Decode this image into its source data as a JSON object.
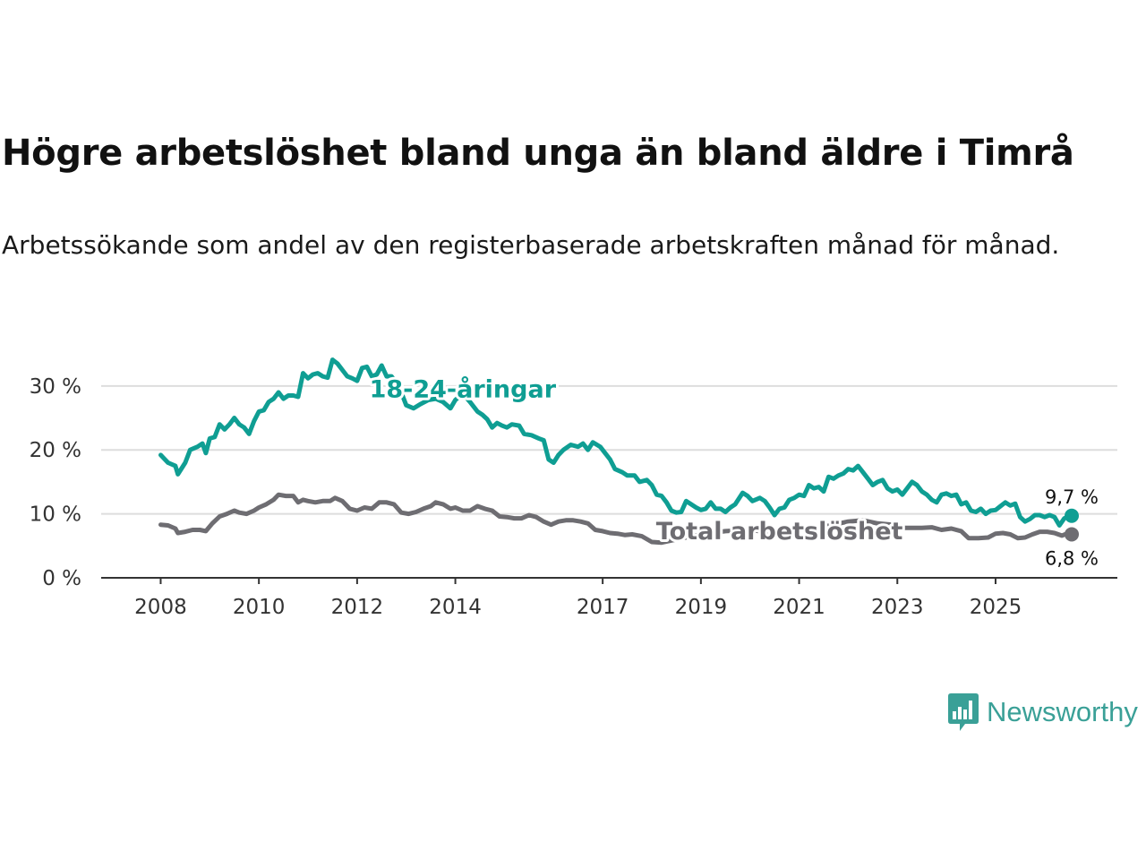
{
  "title": "Högre arbetslöshet bland unga än bland äldre i Timrå",
  "subtitle": "Arbetssökande som andel av den registerbaserade arbetskraften månad för månad.",
  "logo_text": "Newsworthy",
  "colors": {
    "youth": "#0f9e93",
    "total": "#6e6d72",
    "grid": "#dddddd",
    "axis": "#333333"
  },
  "chart_data": {
    "type": "line",
    "ylim": [
      0,
      36
    ],
    "xlim": [
      2007.7,
      2026.55
    ],
    "y_ticks": [
      {
        "value": 0,
        "label": "0 %"
      },
      {
        "value": 10,
        "label": "10 %"
      },
      {
        "value": 20,
        "label": "20 %"
      },
      {
        "value": 30,
        "label": "30 %"
      }
    ],
    "x_ticks": [
      {
        "value": 2008,
        "label": "2008"
      },
      {
        "value": 2010,
        "label": "2010"
      },
      {
        "value": 2012,
        "label": "2012"
      },
      {
        "value": 2014,
        "label": "2014"
      },
      {
        "value": 2017,
        "label": "2017"
      },
      {
        "value": 2019,
        "label": "2019"
      },
      {
        "value": 2021,
        "label": "2021"
      },
      {
        "value": 2023,
        "label": "2023"
      },
      {
        "value": 2025,
        "label": "2025"
      }
    ],
    "series": [
      {
        "name": "18-24-åringar",
        "key": "youth",
        "end_label": "9,7 %",
        "points": [
          [
            2008.0,
            19.2
          ],
          [
            2008.15,
            18.0
          ],
          [
            2008.3,
            17.5
          ],
          [
            2008.35,
            16.2
          ],
          [
            2008.5,
            18.0
          ],
          [
            2008.6,
            20.0
          ],
          [
            2008.75,
            20.5
          ],
          [
            2008.85,
            21.0
          ],
          [
            2008.92,
            19.5
          ],
          [
            2009.0,
            21.8
          ],
          [
            2009.1,
            22.0
          ],
          [
            2009.2,
            24.0
          ],
          [
            2009.3,
            23.2
          ],
          [
            2009.4,
            24.0
          ],
          [
            2009.5,
            25.0
          ],
          [
            2009.6,
            24.0
          ],
          [
            2009.7,
            23.5
          ],
          [
            2009.8,
            22.5
          ],
          [
            2009.9,
            24.5
          ],
          [
            2010.0,
            26.0
          ],
          [
            2010.1,
            26.2
          ],
          [
            2010.2,
            27.5
          ],
          [
            2010.3,
            28.0
          ],
          [
            2010.4,
            29.0
          ],
          [
            2010.5,
            28.0
          ],
          [
            2010.6,
            28.5
          ],
          [
            2010.7,
            28.5
          ],
          [
            2010.8,
            28.3
          ],
          [
            2010.9,
            32.0
          ],
          [
            2011.0,
            31.2
          ],
          [
            2011.1,
            31.8
          ],
          [
            2011.2,
            32.0
          ],
          [
            2011.3,
            31.5
          ],
          [
            2011.4,
            31.3
          ],
          [
            2011.5,
            34.1
          ],
          [
            2011.6,
            33.5
          ],
          [
            2011.7,
            32.5
          ],
          [
            2011.8,
            31.5
          ],
          [
            2011.9,
            31.2
          ],
          [
            2012.0,
            30.8
          ],
          [
            2012.1,
            32.8
          ],
          [
            2012.2,
            33.0
          ],
          [
            2012.3,
            31.5
          ],
          [
            2012.4,
            31.8
          ],
          [
            2012.5,
            33.2
          ],
          [
            2012.6,
            31.5
          ],
          [
            2012.7,
            31.5
          ],
          [
            2012.8,
            30.5
          ],
          [
            2012.9,
            29.0
          ],
          [
            2013.0,
            27.0
          ],
          [
            2013.15,
            26.5
          ],
          [
            2013.3,
            27.2
          ],
          [
            2013.45,
            27.8
          ],
          [
            2013.6,
            28.0
          ],
          [
            2013.75,
            27.5
          ],
          [
            2013.9,
            26.5
          ],
          [
            2014.0,
            27.8
          ],
          [
            2014.15,
            28.8
          ],
          [
            2014.3,
            27.5
          ],
          [
            2014.45,
            26.0
          ],
          [
            2014.55,
            25.5
          ],
          [
            2014.65,
            24.8
          ],
          [
            2014.75,
            23.5
          ],
          [
            2014.85,
            24.2
          ],
          [
            2014.95,
            23.8
          ],
          [
            2015.05,
            23.5
          ],
          [
            2015.15,
            24.0
          ],
          [
            2015.3,
            23.8
          ],
          [
            2015.4,
            22.5
          ],
          [
            2015.55,
            22.3
          ],
          [
            2015.7,
            21.8
          ],
          [
            2015.8,
            21.5
          ],
          [
            2015.9,
            18.5
          ],
          [
            2016.0,
            18.0
          ],
          [
            2016.1,
            19.2
          ],
          [
            2016.2,
            20.0
          ],
          [
            2016.35,
            20.8
          ],
          [
            2016.5,
            20.5
          ],
          [
            2016.6,
            21.0
          ],
          [
            2016.7,
            20.0
          ],
          [
            2016.8,
            21.2
          ],
          [
            2016.95,
            20.5
          ],
          [
            2017.05,
            19.5
          ],
          [
            2017.15,
            18.5
          ],
          [
            2017.25,
            17.0
          ],
          [
            2017.4,
            16.5
          ],
          [
            2017.5,
            16.0
          ],
          [
            2017.65,
            16.0
          ],
          [
            2017.75,
            15.0
          ],
          [
            2017.9,
            15.3
          ],
          [
            2018.0,
            14.5
          ],
          [
            2018.1,
            13.0
          ],
          [
            2018.2,
            12.8
          ],
          [
            2018.3,
            11.8
          ],
          [
            2018.4,
            10.5
          ],
          [
            2018.5,
            10.2
          ],
          [
            2018.6,
            10.3
          ],
          [
            2018.7,
            12.0
          ],
          [
            2018.8,
            11.5
          ],
          [
            2018.9,
            11.0
          ],
          [
            2019.0,
            10.6
          ],
          [
            2019.1,
            10.8
          ],
          [
            2019.2,
            11.8
          ],
          [
            2019.3,
            10.8
          ],
          [
            2019.4,
            10.8
          ],
          [
            2019.5,
            10.3
          ],
          [
            2019.6,
            11.0
          ],
          [
            2019.7,
            11.5
          ],
          [
            2019.85,
            13.3
          ],
          [
            2019.95,
            12.8
          ],
          [
            2020.05,
            12.0
          ],
          [
            2020.2,
            12.5
          ],
          [
            2020.3,
            12.0
          ],
          [
            2020.4,
            11.0
          ],
          [
            2020.5,
            9.8
          ],
          [
            2020.6,
            10.8
          ],
          [
            2020.7,
            11.0
          ],
          [
            2020.8,
            12.2
          ],
          [
            2020.9,
            12.5
          ],
          [
            2021.0,
            13.0
          ],
          [
            2021.1,
            12.8
          ],
          [
            2021.2,
            14.5
          ],
          [
            2021.3,
            14.0
          ],
          [
            2021.4,
            14.2
          ],
          [
            2021.5,
            13.5
          ],
          [
            2021.6,
            15.8
          ],
          [
            2021.7,
            15.5
          ],
          [
            2021.8,
            16.0
          ],
          [
            2021.9,
            16.3
          ],
          [
            2022.0,
            17.0
          ],
          [
            2022.1,
            16.8
          ],
          [
            2022.2,
            17.5
          ],
          [
            2022.3,
            16.5
          ],
          [
            2022.4,
            15.5
          ],
          [
            2022.5,
            14.5
          ],
          [
            2022.6,
            15.0
          ],
          [
            2022.7,
            15.3
          ],
          [
            2022.8,
            14.0
          ],
          [
            2022.9,
            13.5
          ],
          [
            2023.0,
            13.8
          ],
          [
            2023.1,
            13.0
          ],
          [
            2023.2,
            14.0
          ],
          [
            2023.3,
            15.0
          ],
          [
            2023.4,
            14.5
          ],
          [
            2023.5,
            13.5
          ],
          [
            2023.6,
            13.0
          ],
          [
            2023.7,
            12.2
          ],
          [
            2023.8,
            11.8
          ],
          [
            2023.9,
            13.0
          ],
          [
            2024.0,
            13.2
          ],
          [
            2024.1,
            12.8
          ],
          [
            2024.2,
            13.0
          ],
          [
            2024.3,
            11.5
          ],
          [
            2024.4,
            11.8
          ],
          [
            2024.5,
            10.5
          ],
          [
            2024.6,
            10.3
          ],
          [
            2024.7,
            10.8
          ],
          [
            2024.8,
            10.0
          ],
          [
            2024.9,
            10.5
          ],
          [
            2025.0,
            10.6
          ],
          [
            2025.1,
            11.2
          ],
          [
            2025.2,
            11.8
          ],
          [
            2025.3,
            11.3
          ],
          [
            2025.4,
            11.6
          ],
          [
            2025.5,
            9.5
          ],
          [
            2025.6,
            8.8
          ],
          [
            2025.7,
            9.2
          ],
          [
            2025.8,
            9.8
          ],
          [
            2025.9,
            9.8
          ],
          [
            2026.0,
            9.5
          ],
          [
            2026.1,
            9.8
          ],
          [
            2026.2,
            9.5
          ],
          [
            2026.3,
            8.2
          ],
          [
            2026.4,
            9.3
          ],
          [
            2026.55,
            9.7
          ]
        ]
      },
      {
        "name": "Total arbetslöshet",
        "key": "total",
        "end_label": "6,8 %",
        "points": [
          [
            2008.0,
            8.3
          ],
          [
            2008.15,
            8.2
          ],
          [
            2008.3,
            7.7
          ],
          [
            2008.35,
            7.0
          ],
          [
            2008.5,
            7.2
          ],
          [
            2008.65,
            7.5
          ],
          [
            2008.8,
            7.5
          ],
          [
            2008.92,
            7.3
          ],
          [
            2009.05,
            8.5
          ],
          [
            2009.2,
            9.6
          ],
          [
            2009.35,
            10.0
          ],
          [
            2009.5,
            10.5
          ],
          [
            2009.6,
            10.2
          ],
          [
            2009.75,
            10.0
          ],
          [
            2009.9,
            10.5
          ],
          [
            2010.0,
            11.0
          ],
          [
            2010.15,
            11.5
          ],
          [
            2010.3,
            12.2
          ],
          [
            2010.4,
            13.0
          ],
          [
            2010.55,
            12.8
          ],
          [
            2010.7,
            12.8
          ],
          [
            2010.8,
            11.8
          ],
          [
            2010.9,
            12.2
          ],
          [
            2011.0,
            12.0
          ],
          [
            2011.15,
            11.8
          ],
          [
            2011.3,
            12.0
          ],
          [
            2011.45,
            12.0
          ],
          [
            2011.55,
            12.5
          ],
          [
            2011.7,
            12.0
          ],
          [
            2011.85,
            10.8
          ],
          [
            2012.0,
            10.5
          ],
          [
            2012.15,
            11.0
          ],
          [
            2012.3,
            10.8
          ],
          [
            2012.45,
            11.8
          ],
          [
            2012.6,
            11.8
          ],
          [
            2012.75,
            11.5
          ],
          [
            2012.9,
            10.2
          ],
          [
            2013.05,
            10.0
          ],
          [
            2013.2,
            10.3
          ],
          [
            2013.35,
            10.8
          ],
          [
            2013.5,
            11.2
          ],
          [
            2013.6,
            11.8
          ],
          [
            2013.75,
            11.5
          ],
          [
            2013.9,
            10.8
          ],
          [
            2014.0,
            11.0
          ],
          [
            2014.15,
            10.5
          ],
          [
            2014.3,
            10.5
          ],
          [
            2014.45,
            11.2
          ],
          [
            2014.6,
            10.8
          ],
          [
            2014.75,
            10.5
          ],
          [
            2014.9,
            9.6
          ],
          [
            2015.05,
            9.5
          ],
          [
            2015.2,
            9.3
          ],
          [
            2015.35,
            9.3
          ],
          [
            2015.5,
            9.8
          ],
          [
            2015.65,
            9.5
          ],
          [
            2015.8,
            8.8
          ],
          [
            2015.95,
            8.3
          ],
          [
            2016.1,
            8.8
          ],
          [
            2016.25,
            9.0
          ],
          [
            2016.4,
            9.0
          ],
          [
            2016.55,
            8.8
          ],
          [
            2016.7,
            8.5
          ],
          [
            2016.85,
            7.5
          ],
          [
            2017.0,
            7.3
          ],
          [
            2017.15,
            7.0
          ],
          [
            2017.3,
            6.9
          ],
          [
            2017.45,
            6.7
          ],
          [
            2017.6,
            6.8
          ],
          [
            2017.8,
            6.5
          ],
          [
            2018.0,
            5.6
          ],
          [
            2018.2,
            5.5
          ],
          [
            2018.5,
            6.0
          ],
          [
            2019.0,
            6.8
          ],
          [
            2019.5,
            7.3
          ],
          [
            2020.0,
            7.5
          ],
          [
            2020.5,
            7.0
          ],
          [
            2021.0,
            7.5
          ],
          [
            2021.5,
            8.0
          ],
          [
            2022.0,
            8.8
          ],
          [
            2022.3,
            9.0
          ],
          [
            2022.6,
            8.5
          ],
          [
            2022.9,
            8.3
          ],
          [
            2023.1,
            7.8
          ],
          [
            2023.3,
            7.8
          ],
          [
            2023.5,
            7.8
          ],
          [
            2023.7,
            7.9
          ],
          [
            2023.9,
            7.5
          ],
          [
            2024.1,
            7.7
          ],
          [
            2024.3,
            7.3
          ],
          [
            2024.45,
            6.2
          ],
          [
            2024.65,
            6.2
          ],
          [
            2024.85,
            6.3
          ],
          [
            2025.0,
            6.9
          ],
          [
            2025.15,
            7.0
          ],
          [
            2025.3,
            6.8
          ],
          [
            2025.45,
            6.2
          ],
          [
            2025.6,
            6.3
          ],
          [
            2025.75,
            6.8
          ],
          [
            2025.9,
            7.2
          ],
          [
            2026.05,
            7.2
          ],
          [
            2026.2,
            7.0
          ],
          [
            2026.35,
            6.6
          ],
          [
            2026.45,
            6.9
          ],
          [
            2026.55,
            6.8
          ]
        ]
      }
    ]
  }
}
